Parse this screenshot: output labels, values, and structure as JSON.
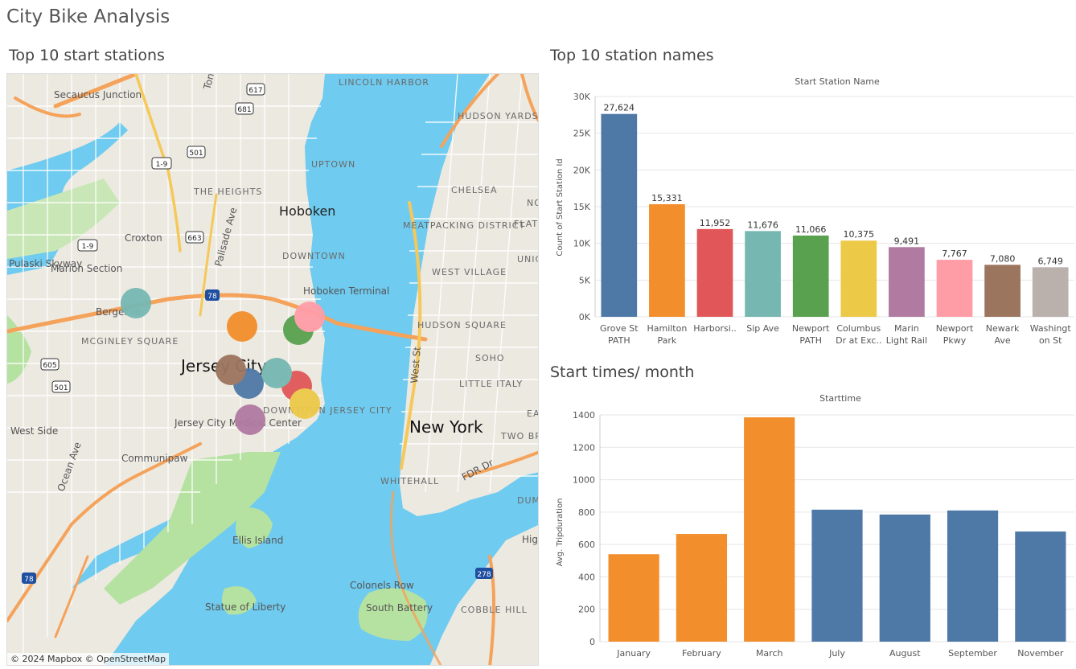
{
  "dashboard": {
    "title": "City Bike Analysis"
  },
  "map_sheet": {
    "title": "Top 10 start stations",
    "attribution": "© 2024 Mapbox © OpenStreetMap",
    "colors": {
      "water": "#6fcbef",
      "land": "#ece9e1",
      "park": "#b6e2a1"
    },
    "labels": {
      "secaucus": "Secaucus Junction",
      "lincoln": "LINCOLN HARBOR",
      "hudson_yards": "HUDSON YARDS",
      "uptown": "UPTOWN",
      "chelsea": "CHELSEA",
      "heights": "THE HEIGHTS",
      "hoboken": "Hoboken",
      "meatpacking": "MEATPACKING DISTRICT",
      "flatiron": "FLATI DISTI",
      "croxton": "Croxton",
      "pulaski": "Pulaski Skyway",
      "marion": "Marion Section",
      "downtown": "DOWNTOWN",
      "hoboken_terminal": "Hoboken Terminal",
      "west_village": "WEST VILLAGE",
      "union": "UNIC SQUA",
      "bergen": "Berger      re",
      "mcginley": "MCGINLEY SQUARE",
      "hudson_square": "HUDSON SQUARE",
      "soho": "SOHO",
      "jersey_city": "Jersey City",
      "little_italy": "LITTLE ITALY",
      "west_side": "West Side",
      "jc_medical": "Jersey City Medical Center",
      "downtown_jc": "DOWNTOWN JERSEY CITY",
      "new_york": "New York",
      "two_bridges": "TWO BRIDGE",
      "communipaw": "Communipaw",
      "whitehall": "WHITEHALL",
      "fdr": "FDR Dr",
      "ocean_ave": "Ocean Ave",
      "palisade": "Palisade Ave",
      "west_st": "West St",
      "ellis": "Ellis Island",
      "colonels": "Colonels Row",
      "south_battery": "South Battery",
      "statue": "Statue of Liberty",
      "cobble": "COBBLE HILL",
      "high": "High",
      "dum": "DUM",
      "ea": "EA",
      "no": "NO",
      "toni": "Toni"
    },
    "shields": [
      "617",
      "681",
      "501",
      "1-9",
      "663",
      "1-9",
      "78",
      "605",
      "501",
      "78",
      "278"
    ],
    "stations": [
      {
        "name": "Grove St PATH",
        "color": "#4e79a7"
      },
      {
        "name": "Hamilton Park",
        "color": "#f28e2b"
      },
      {
        "name": "Harborside",
        "color": "#e15759"
      },
      {
        "name": "Sip Ave",
        "color": "#76b7b2"
      },
      {
        "name": "Newport PATH",
        "color": "#59a14f"
      },
      {
        "name": "Columbus Dr at Exchange Pl",
        "color": "#edc948"
      },
      {
        "name": "Marin Light Rail",
        "color": "#b07aa1"
      },
      {
        "name": "Newport Pkwy",
        "color": "#ff9da7"
      },
      {
        "name": "Newark Ave",
        "color": "#9c755f"
      },
      {
        "name": "Washington St",
        "color": "#76b7b2"
      }
    ]
  },
  "station_sheet": {
    "title": "Top 10 station names",
    "chart_data": {
      "type": "bar",
      "title": "Start Station Name",
      "ylabel": "Count of Start Station Id",
      "ylim": [
        0,
        30000
      ],
      "yticks": [
        0,
        5000,
        10000,
        15000,
        20000,
        25000,
        30000
      ],
      "ytick_labels": [
        "0K",
        "5K",
        "10K",
        "15K",
        "20K",
        "25K",
        "30K"
      ],
      "categories": [
        [
          "Grove St",
          "PATH"
        ],
        [
          "Hamilton",
          "Park"
        ],
        [
          "Harborsi.."
        ],
        [
          "Sip Ave"
        ],
        [
          "Newport",
          "PATH"
        ],
        [
          "Columbus",
          "Dr at Exc.."
        ],
        [
          "Marin",
          "Light Rail"
        ],
        [
          "Newport",
          "Pkwy"
        ],
        [
          "Newark",
          "Ave"
        ],
        [
          "Washingt",
          "on St"
        ]
      ],
      "values": [
        27624,
        15331,
        11952,
        11676,
        11066,
        10375,
        9491,
        7767,
        7080,
        6749
      ],
      "value_labels": [
        "27,624",
        "15,331",
        "11,952",
        "11,676",
        "11,066",
        "10,375",
        "9,491",
        "7,767",
        "7,080",
        "6,749"
      ],
      "colors": [
        "#4e79a7",
        "#f28e2b",
        "#e15759",
        "#76b7b2",
        "#59a14f",
        "#edc948",
        "#b07aa1",
        "#ff9da7",
        "#9c755f",
        "#bab0ac"
      ],
      "grid": true
    }
  },
  "month_sheet": {
    "title": "Start times/ month",
    "chart_data": {
      "type": "bar",
      "title": "Starttime",
      "ylabel": "Avg. Tripduration",
      "ylim": [
        0,
        1400
      ],
      "yticks": [
        0,
        200,
        400,
        600,
        800,
        1000,
        1200,
        1400
      ],
      "categories": [
        "January",
        "February",
        "March",
        "July",
        "August",
        "September",
        "November"
      ],
      "values": [
        540,
        665,
        1385,
        815,
        785,
        810,
        680
      ],
      "colors": [
        "#f28e2b",
        "#f28e2b",
        "#f28e2b",
        "#4e79a7",
        "#4e79a7",
        "#4e79a7",
        "#4e79a7"
      ],
      "grid": true
    }
  }
}
